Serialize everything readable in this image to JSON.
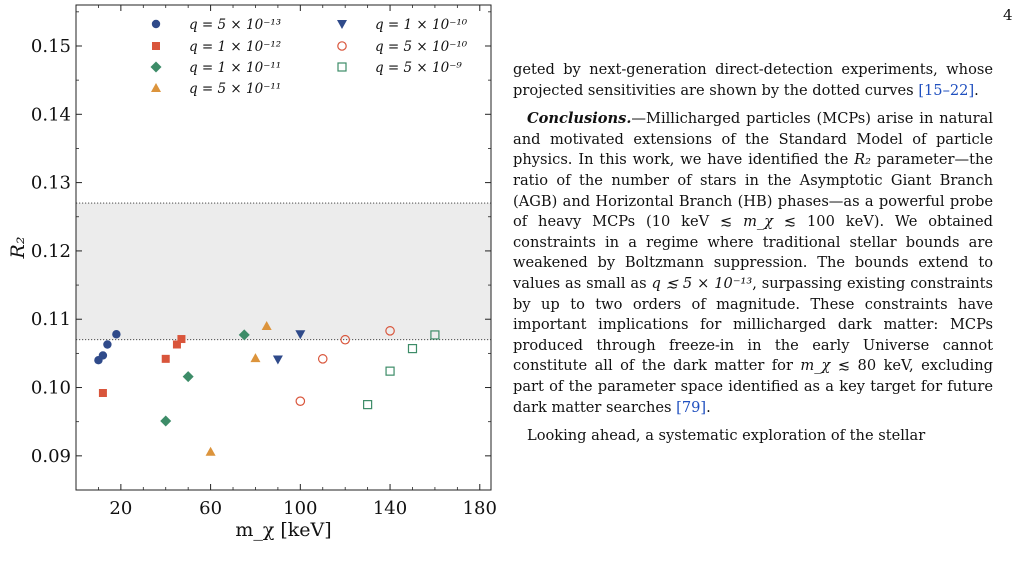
{
  "page_number": "4",
  "chart_data": {
    "type": "scatter",
    "xlabel": "m_χ [keV]",
    "ylabel": "R₂",
    "xlim": [
      0,
      185
    ],
    "ylim": [
      0.085,
      0.156
    ],
    "x_ticks": [
      20,
      60,
      100,
      140,
      180
    ],
    "y_ticks": [
      0.09,
      0.1,
      0.11,
      0.12,
      0.13,
      0.14,
      0.15
    ],
    "grid": false,
    "legend_position": "top",
    "band": {
      "y_low": 0.107,
      "y_high": 0.127,
      "color": "#ececec",
      "edge_style": "dotted"
    },
    "series": [
      {
        "name": "q = 5 × 10⁻¹³",
        "marker": "circle",
        "filled": true,
        "color": "#2f4a8a",
        "points": [
          [
            10,
            0.104
          ],
          [
            12,
            0.1047
          ],
          [
            14,
            0.1063
          ],
          [
            18,
            0.1078
          ]
        ]
      },
      {
        "name": "q = 1 × 10⁻¹²",
        "marker": "square",
        "filled": true,
        "color": "#d9553b",
        "points": [
          [
            12,
            0.0992
          ],
          [
            40,
            0.1042
          ],
          [
            45,
            0.1063
          ],
          [
            47,
            0.1071
          ]
        ]
      },
      {
        "name": "q = 1 × 10⁻¹¹",
        "marker": "diamond",
        "filled": true,
        "color": "#3d8c68",
        "points": [
          [
            40,
            0.0951
          ],
          [
            50,
            0.1016
          ],
          [
            75,
            0.1077
          ]
        ]
      },
      {
        "name": "q = 5 × 10⁻¹¹",
        "marker": "triangle-up",
        "filled": true,
        "color": "#dc943c",
        "points": [
          [
            60,
            0.0906
          ],
          [
            80,
            0.1043
          ],
          [
            85,
            0.109
          ]
        ]
      },
      {
        "name": "q = 1 × 10⁻¹⁰",
        "marker": "triangle-down",
        "filled": true,
        "color": "#2f4a8a",
        "points": [
          [
            90,
            0.1041
          ],
          [
            100,
            0.1078
          ]
        ]
      },
      {
        "name": "q = 5 × 10⁻¹⁰",
        "marker": "circle",
        "filled": false,
        "color": "#d9553b",
        "points": [
          [
            100,
            0.098
          ],
          [
            110,
            0.1042
          ],
          [
            120,
            0.107
          ],
          [
            140,
            0.1083
          ]
        ]
      },
      {
        "name": "q = 5 × 10⁻⁹",
        "marker": "square",
        "filled": false,
        "color": "#3d8c68",
        "points": [
          [
            130,
            0.0975
          ],
          [
            140,
            0.1024
          ],
          [
            150,
            0.1057
          ],
          [
            160,
            0.1077
          ]
        ]
      }
    ]
  },
  "text": {
    "p1_start": "geted by next-generation direct-detection experiments, whose projected sensitivities are shown by the dotted curves ",
    "p1_cite": "[15–22]",
    "p1_end": ".",
    "conclusions_head": "Conclusions.",
    "conclusions_s1": "—Millicharged particles (MCPs) arise in natural and motivated extensions of the Standard Model of particle physics. In this work, we have identified the ",
    "r2_symbol": "R₂",
    "conclusions_s2": " parameter—the ratio of the number of stars in the Asymptotic Giant Branch (AGB) and Horizontal Branch (HB) phases—as a powerful probe of heavy MCPs (10 keV ≲ ",
    "m_chi": "m_χ",
    "conclusions_s3": " ≲ 100 keV). We obtained constraints in a regime where traditional stellar bounds are weakened by Boltzmann suppression. The bounds extend to values as small as ",
    "q_bound": "q ≲ 5 × 10⁻¹³",
    "conclusions_s4": ", surpassing existing constraints by up to two orders of magnitude. These constraints have important implications for millicharged dark matter: MCPs produced through freeze-in in the early Universe cannot constitute all of the dark matter for ",
    "m_chi_2": "m_χ",
    "conclusions_s5": " ≲ 80 keV, excluding part of the parameter space identified as a key target for future dark matter searches ",
    "conclusions_cite": "[79]",
    "conclusions_end": ".",
    "p3_start": "Looking ahead, a systematic exploration of the stellar"
  }
}
